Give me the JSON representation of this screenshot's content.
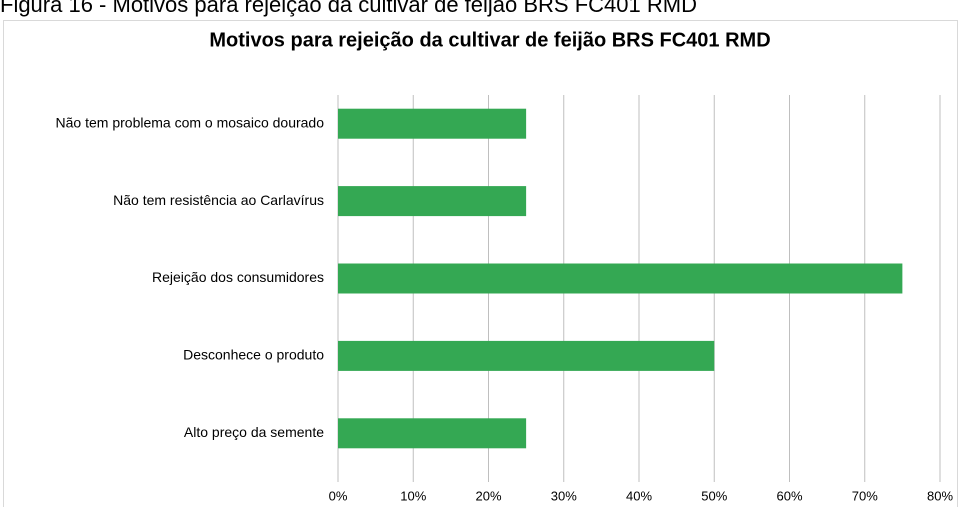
{
  "caption": "Figura 16 - Motivos para rejeição da cultivar de feijão BRS FC401 RMD",
  "chart_data": {
    "type": "bar",
    "orientation": "horizontal",
    "title": "Motivos para rejeição da cultivar de feijão BRS FC401 RMD",
    "categories": [
      "Não tem problema com o mosaico dourado",
      "Não tem resistência ao Carlavírus",
      "Rejeição dos consumidores",
      "Desconhece o produto",
      "Alto preço da semente"
    ],
    "values": [
      25,
      25,
      75,
      50,
      25
    ],
    "color": "#34a853",
    "xlim": [
      0,
      80
    ],
    "xticks": [
      {
        "value": 0,
        "label": "0%"
      },
      {
        "value": 10,
        "label": "10%"
      },
      {
        "value": 20,
        "label": "20%"
      },
      {
        "value": 30,
        "label": "30%"
      },
      {
        "value": 40,
        "label": "40%"
      },
      {
        "value": 50,
        "label": "50%"
      },
      {
        "value": 60,
        "label": "60%"
      },
      {
        "value": 70,
        "label": "70%"
      },
      {
        "value": 80,
        "label": "80%"
      }
    ],
    "grid": true
  }
}
